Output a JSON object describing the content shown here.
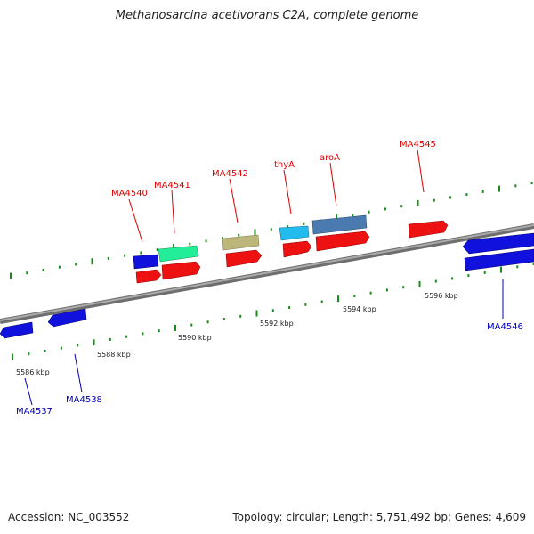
{
  "title": "Methanosarcina acetivorans C2A, complete genome",
  "footer": {
    "accession": "Accession: NC_003552",
    "summary": "Topology: circular; Length: 5,751,492 bp; Genes: 4,609"
  },
  "colors": {
    "background": "#ffffff",
    "backbone": "#8a8a8a",
    "tick": "#1a8a1a",
    "label_top": "#dd0000",
    "label_bottom": "#0000bb",
    "gene_red": "#ee1111",
    "gene_blue": "#1111dd",
    "gene_teal": "#22ee99",
    "gene_khaki": "#bdb67a",
    "gene_cyan": "#22bbee",
    "gene_steel": "#4a7ab0"
  },
  "axis": {
    "unit": "kbp",
    "labels": [
      "5586 kbp",
      "5588 kbp",
      "5590 kbp",
      "5592 kbp",
      "5594 kbp",
      "5596 kbp"
    ]
  },
  "genes_top": [
    {
      "label": "MA4540",
      "color": "#dd0000"
    },
    {
      "label": "MA4541",
      "color": "#dd0000"
    },
    {
      "label": "MA4542",
      "color": "#dd0000"
    },
    {
      "label": "thyA",
      "color": "#dd0000"
    },
    {
      "label": "aroA",
      "color": "#dd0000"
    },
    {
      "label": "MA4545",
      "color": "#dd0000"
    }
  ],
  "genes_bottom": [
    {
      "label": "MA4537",
      "color": "#0000bb"
    },
    {
      "label": "MA4538",
      "color": "#0000bb"
    },
    {
      "label": "MA4546",
      "color": "#0000bb"
    }
  ]
}
